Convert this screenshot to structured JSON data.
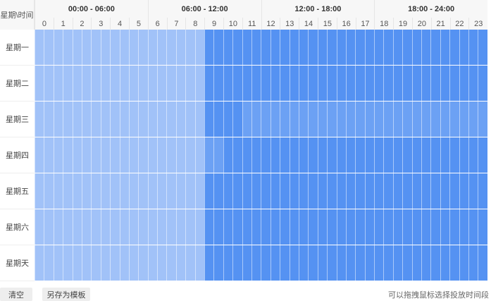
{
  "header": {
    "corner": "星期\\时间",
    "ranges": [
      "00:00 - 06:00",
      "06:00 - 12:00",
      "12:00 - 18:00",
      "18:00 - 24:00"
    ],
    "hours": [
      "0",
      "1",
      "2",
      "3",
      "4",
      "5",
      "6",
      "7",
      "8",
      "9",
      "10",
      "11",
      "12",
      "13",
      "14",
      "15",
      "16",
      "17",
      "18",
      "19",
      "20",
      "21",
      "22",
      "23"
    ]
  },
  "colors": {
    "1": "#a1c2f8",
    "2": "#6ca1f4",
    "3": "#5592f2"
  },
  "days": [
    {
      "label": "星期一",
      "levels": "111111111111111111333333333333333333333333333333"
    },
    {
      "label": "星期二",
      "levels": "111111111111111111333333333333333333333333333333"
    },
    {
      "label": "星期三",
      "levels": "111111111111111111333322222222222222222222222222"
    },
    {
      "label": "星期四",
      "levels": "111111111111111111223333333333333333333333333333"
    },
    {
      "label": "星期五",
      "levels": "111111111111111111333333333333333333333333333333"
    },
    {
      "label": "星期六",
      "levels": "111111111111111111333333333333333333333333333333"
    },
    {
      "label": "星期天",
      "levels": "111111111111111111333333333333333333333333333333"
    }
  ],
  "footer": {
    "clear": "清空",
    "save_template": "另存为模板",
    "hint": "可以拖拽鼠标选择投放时间段"
  }
}
